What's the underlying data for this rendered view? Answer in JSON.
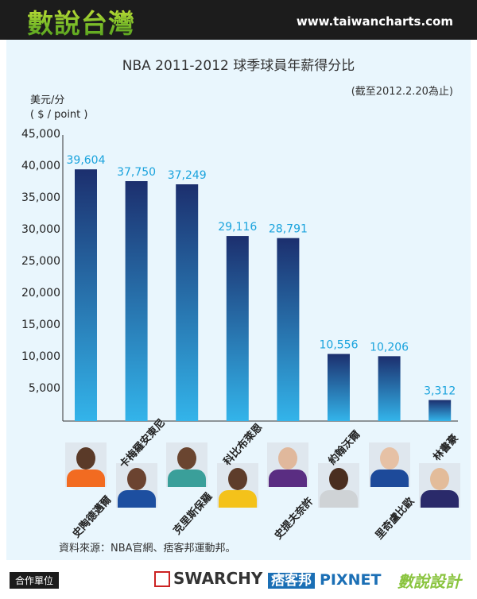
{
  "header": {
    "logo_text": "數說台灣",
    "site_url": "www.taiwancharts.com"
  },
  "chart_data": {
    "type": "bar",
    "title": "NBA 2011-2012 球季球員年薪得分比",
    "subtitle": "(截至2012.2.20為止)",
    "ylabel_line1": "美元/分",
    "ylabel_line2": "( $ / point )",
    "ylim": [
      0,
      45000
    ],
    "yticks": [
      5000,
      10000,
      15000,
      20000,
      25000,
      30000,
      35000,
      40000,
      45000
    ],
    "ytick_labels": [
      "5,000",
      "10,000",
      "15,000",
      "20,000",
      "25,000",
      "30,000",
      "35,000",
      "40,000",
      "45,000"
    ],
    "categories": [
      "史陶德邁爾",
      "卡梅羅安東尼",
      "克里斯保羅",
      "科比布萊恩",
      "史提夫奈許",
      "約翰沃爾",
      "里奇盧比歐",
      "林書豪"
    ],
    "values": [
      39604,
      37750,
      37249,
      29116,
      28791,
      10556,
      10206,
      3312
    ],
    "value_labels": [
      "39,604",
      "37,750",
      "37,249",
      "29,116",
      "28,791",
      "10,556",
      "10,206",
      "3,312"
    ],
    "grid": false,
    "bar_color_top": "#1c2f6e",
    "bar_color_bottom": "#33b4ea",
    "value_label_color": "#1aa3dd"
  },
  "players": [
    {
      "jersey_color": "#f26b21",
      "skin": "#5a3a28"
    },
    {
      "jersey_color": "#1d4fa0",
      "skin": "#6b4330"
    },
    {
      "jersey_color": "#3a9f9a",
      "skin": "#6a4530"
    },
    {
      "jersey_color": "#f4c21a",
      "skin": "#5e3d2b"
    },
    {
      "jersey_color": "#5a2d82",
      "skin": "#e0b89c"
    },
    {
      "jersey_color": "#cfd3d6",
      "skin": "#4a2e20"
    },
    {
      "jersey_color": "#1d4a9a",
      "skin": "#e6c1a5"
    },
    {
      "jersey_color": "#2a2a6a",
      "skin": "#e3bc9a"
    }
  ],
  "source_text": "資料來源：NBA官網、痞客邦運動邦。",
  "footer": {
    "partner_label": "合作單位",
    "partner1": "SWARCHY",
    "partner2_a": "痞客邦",
    "partner2_b": "PIXNET",
    "partner3": "數說設計"
  }
}
